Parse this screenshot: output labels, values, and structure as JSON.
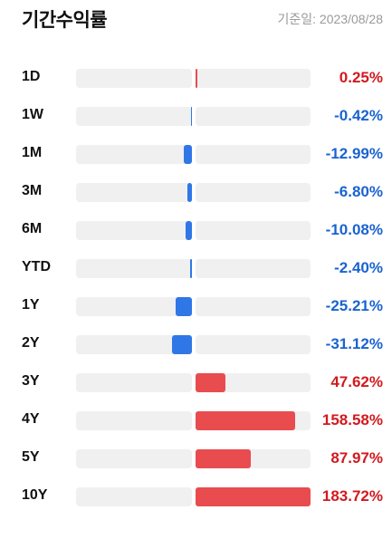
{
  "header": {
    "title": "기간수익률",
    "as_of": "기준일: 2023/08/28"
  },
  "colors": {
    "positive": "#e84c4f",
    "negative": "#2f77e6",
    "positive_text": "#d11a1f",
    "negative_text": "#1a63cf",
    "track": "#f0f0f0"
  },
  "chart_data": {
    "type": "bar",
    "orientation": "horizontal",
    "categories": [
      "1D",
      "1W",
      "1M",
      "3M",
      "6M",
      "YTD",
      "1Y",
      "2Y",
      "3Y",
      "4Y",
      "5Y",
      "10Y"
    ],
    "values": [
      0.25,
      -0.42,
      -12.99,
      -6.8,
      -10.08,
      -2.4,
      -25.21,
      -31.12,
      47.62,
      158.58,
      87.97,
      183.72
    ],
    "labels": [
      "0.25%",
      "-0.42%",
      "-12.99%",
      "-6.80%",
      "-10.08%",
      "-2.40%",
      "-25.21%",
      "-31.12%",
      "47.62%",
      "158.58%",
      "87.97%",
      "183.72%"
    ]
  }
}
